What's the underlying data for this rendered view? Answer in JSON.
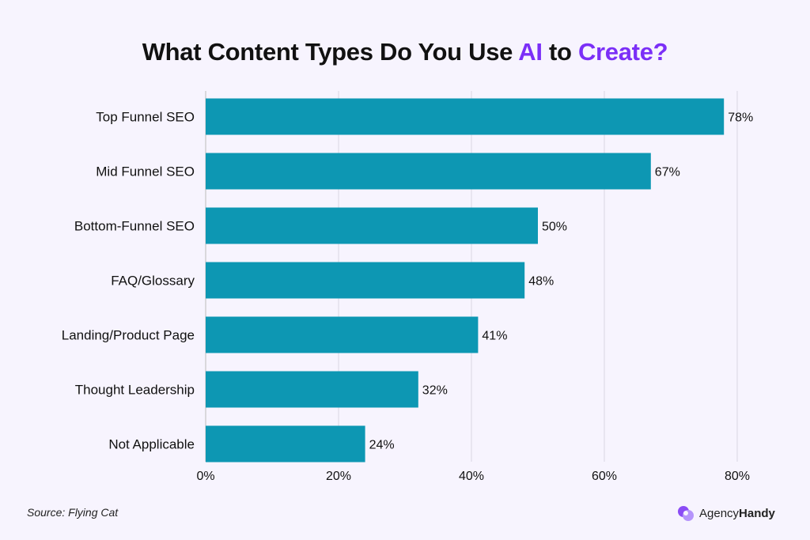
{
  "chart_data": {
    "type": "bar",
    "orientation": "horizontal",
    "title": {
      "part1": "What Content Types Do You Use ",
      "accent1": "AI",
      "part2": " to ",
      "accent2": "Create?"
    },
    "categories": [
      "Top Funnel SEO",
      "Mid Funnel SEO",
      "Bottom-Funnel SEO",
      "FAQ/Glossary",
      "Landing/Product Page",
      "Thought Leadership",
      "Not Applicable"
    ],
    "values": [
      78,
      67,
      50,
      48,
      41,
      32,
      24
    ],
    "value_labels": [
      "78%",
      "67%",
      "50%",
      "48%",
      "41%",
      "32%",
      "24%"
    ],
    "xlim": [
      0,
      80
    ],
    "x_ticks": [
      0,
      20,
      40,
      60,
      80
    ],
    "x_tick_labels": [
      "0%",
      "20%",
      "40%",
      "60%",
      "80%"
    ],
    "grid": true,
    "xlabel": "",
    "ylabel": ""
  },
  "colors": {
    "bar": "#0d97b3",
    "accent": "#7b2ff7",
    "background": "#f7f4fe",
    "grid": "#d9d6e3"
  },
  "source": "Source: Flying Cat",
  "logo": {
    "text_regular": "Agency",
    "text_bold": "Handy"
  }
}
